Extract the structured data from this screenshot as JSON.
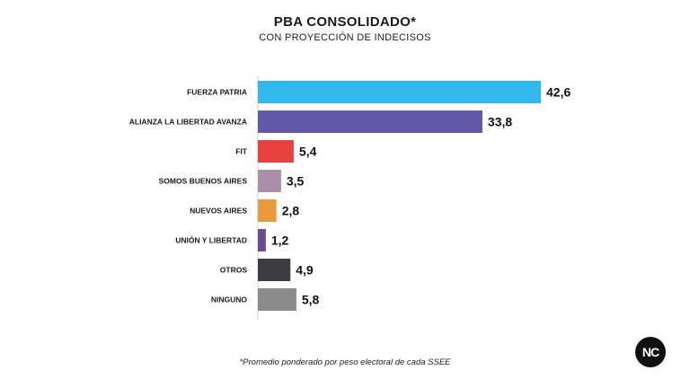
{
  "header": {
    "title": "PBA CONSOLIDADO*",
    "subtitle": "CON PROYECCIÓN DE INDECISOS"
  },
  "chart_data": {
    "type": "bar",
    "orientation": "horizontal",
    "title": "PBA CONSOLIDADO*",
    "subtitle": "CON PROYECCIÓN DE INDECISOS",
    "categories": [
      "FUERZA PATRIA",
      "ALIANZA LA LIBERTAD AVANZA",
      "FIT",
      "SOMOS BUENOS AIRES",
      "NUEVOS AIRES",
      "UNIÓN Y LIBERTAD",
      "OTROS",
      "NINGUNO"
    ],
    "values": [
      42.6,
      33.8,
      5.4,
      3.5,
      2.8,
      1.2,
      4.9,
      5.8
    ],
    "value_labels": [
      "42,6",
      "33,8",
      "5,4",
      "3,5",
      "2,8",
      "1,2",
      "4,9",
      "5,8"
    ],
    "colors": [
      "#33b8ee",
      "#6459a8",
      "#e8413f",
      "#a990a8",
      "#e89a3c",
      "#6b4a8f",
      "#3d3d3f",
      "#8a8a8a"
    ],
    "xlim": [
      0,
      42.6
    ],
    "grid": false,
    "legend": "none"
  },
  "footnote": "*Promedio ponderado por peso electoral de cada SSEE",
  "logo": {
    "text": "NC"
  }
}
